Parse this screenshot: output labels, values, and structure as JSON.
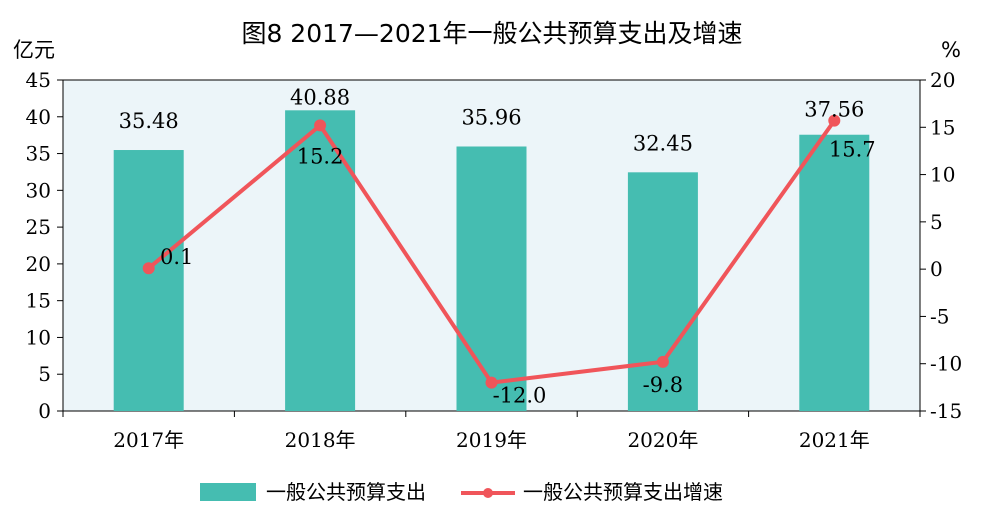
{
  "chart_data": {
    "type": "bar",
    "title": "图8  2017—2021年一般公共预算支出及增速",
    "categories": [
      "2017年",
      "2018年",
      "2019年",
      "2020年",
      "2021年"
    ],
    "y_left": {
      "label": "亿元",
      "range": [
        0,
        45
      ],
      "ticks": [
        0,
        5,
        10,
        15,
        20,
        25,
        30,
        35,
        40,
        45
      ]
    },
    "y_right": {
      "label": "%",
      "range": [
        -15,
        20
      ],
      "ticks": [
        -15,
        -10,
        -5,
        0,
        5,
        10,
        15,
        20
      ]
    },
    "grid": false,
    "legend_position": "bottom",
    "series": [
      {
        "name": "一般公共预算支出",
        "type": "bar",
        "axis": "left",
        "color": "#45bdb1",
        "values": [
          35.48,
          40.88,
          35.96,
          32.45,
          37.56
        ],
        "labels": [
          "35.48",
          "40.88",
          "35.96",
          "32.45",
          "37.56"
        ]
      },
      {
        "name": "一般公共预算支出增速",
        "type": "line",
        "axis": "right",
        "color": "#f0555a",
        "values": [
          0.1,
          15.2,
          -12.0,
          -9.8,
          15.7
        ],
        "labels": [
          "0.1",
          "15.2",
          "-12.0",
          "-9.8",
          "15.7"
        ]
      }
    ],
    "plot_background": "#ecf5f9"
  }
}
